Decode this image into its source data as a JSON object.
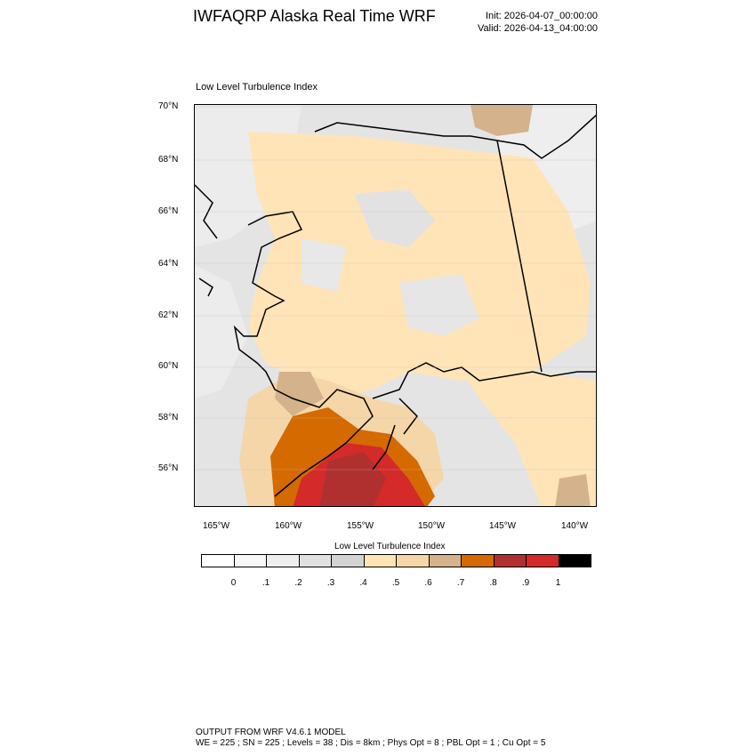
{
  "header": {
    "title": "IWFAQRP Alaska Real Time WRF",
    "init": "Init: 2026-04-07_00:00:00",
    "valid": "Valid: 2026-04-13_04:00:00"
  },
  "plot": {
    "title": "Low Level Turbulence Index",
    "lat_labels": [
      "70°N",
      "68°N",
      "66°N",
      "64°N",
      "62°N",
      "60°N",
      "58°N",
      "56°N"
    ],
    "lon_labels": [
      "165°W",
      "160°W",
      "155°W",
      "150°W",
      "145°W",
      "140°W"
    ]
  },
  "colorbar": {
    "title": "Low Level Turbulence Index",
    "colors": [
      "#ffffff",
      "#f7f7f7",
      "#eeeeee",
      "#e1e1e1",
      "#d3d3d3",
      "#ffe4b8",
      "#f5d6a8",
      "#d4b28c",
      "#d46a00",
      "#b03030",
      "#d42a2a",
      "#000000"
    ],
    "tick_labels": [
      "0",
      ".1",
      ".2",
      ".3",
      ".4",
      ".5",
      ".6",
      ".7",
      ".8",
      ".9",
      "1"
    ]
  },
  "footer": {
    "line1": "OUTPUT FROM WRF V4.6.1 MODEL",
    "line2": "WE = 225 ; SN = 225 ; Levels = 38 ; Dis = 8km ; Phys Opt = 8 ; PBL Opt = 1 ; Cu Opt = 5"
  }
}
